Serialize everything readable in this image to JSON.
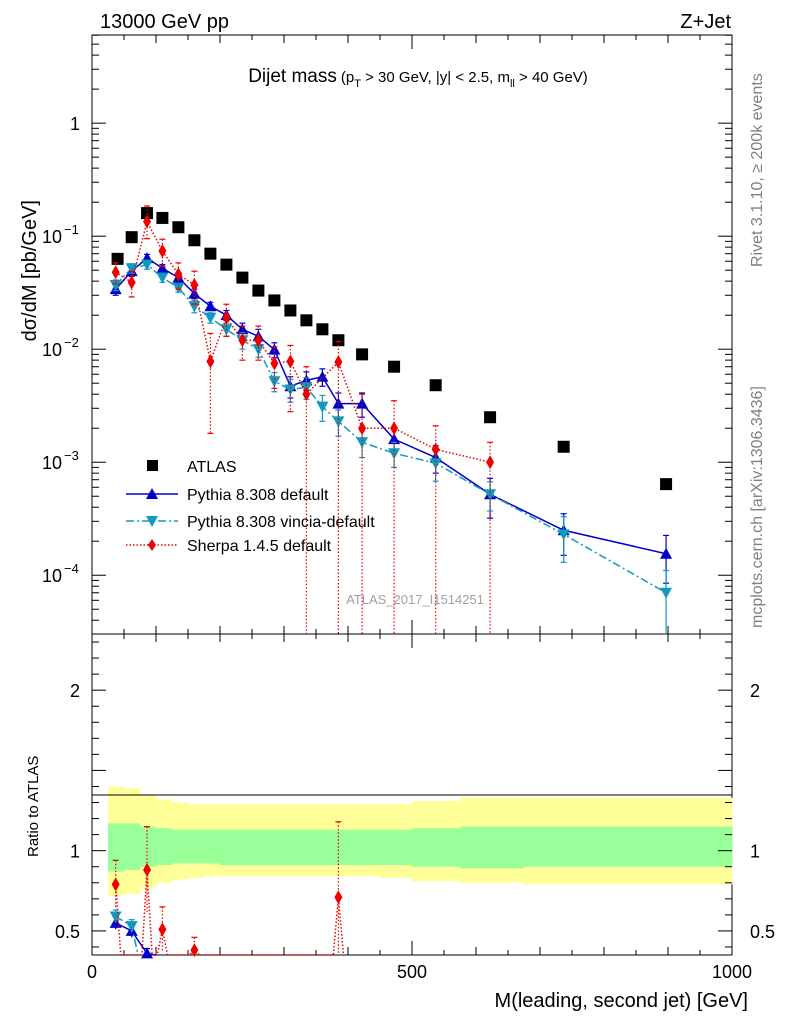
{
  "header": {
    "energy_label": "13000 GeV pp",
    "process_label": "Z+Jet"
  },
  "side_labels": {
    "rivet": "Rivet 3.1.10, ≥ 200k events",
    "mcplots": "mcplots.cern.ch [arXiv:1306.3436]"
  },
  "watermark": "ATLAS_2017_I1514251",
  "title": {
    "main": "Dijet mass",
    "cuts_part1": "(p",
    "cuts_sub1": "T",
    "cuts_part2": " > 30 GeV, |y| < 2.5, m",
    "cuts_sub2": "ll",
    "cuts_part3": " > 40 GeV)"
  },
  "colors": {
    "atlas": "#000000",
    "pythia": "#0000cc",
    "vincia": "#1199bb",
    "sherpa": "#ee0000",
    "band_inner": "#99ff99",
    "band_outer": "#ffff99"
  },
  "chart_data": [
    {
      "type": "scatter",
      "panel": "main",
      "ylabel": "dσ/dM [pb/GeV]",
      "yscale": "log",
      "xlim": [
        0,
        1000
      ],
      "ylim": [
        3e-05,
        6
      ],
      "x_ticks": [
        "0",
        "500",
        "1000"
      ],
      "y_ticks": [
        {
          "value": 1,
          "label": "1"
        },
        {
          "value": 0.1,
          "base": "10",
          "exp": "−1"
        },
        {
          "value": 0.01,
          "base": "10",
          "exp": "−2"
        },
        {
          "value": 0.001,
          "base": "10",
          "exp": "−3"
        },
        {
          "value": 0.0001,
          "base": "10",
          "exp": "−4"
        }
      ],
      "legend_position": "lower-left",
      "series": [
        {
          "name": "ATLAS",
          "marker": "square",
          "x": [
            40,
            62,
            86,
            110,
            135,
            160,
            185,
            210,
            235,
            260,
            285,
            310,
            335,
            360,
            385,
            422,
            472,
            537,
            622,
            737,
            897
          ],
          "y": [
            0.063,
            0.098,
            0.16,
            0.145,
            0.12,
            0.092,
            0.07,
            0.056,
            0.043,
            0.033,
            0.027,
            0.022,
            0.018,
            0.015,
            0.012,
            0.009,
            0.007,
            0.0048,
            0.0025,
            0.00137,
            0.00064
          ]
        },
        {
          "name": "Pythia 8.308 default",
          "marker": "triangle-up",
          "line": "solid",
          "x": [
            37,
            62,
            86,
            110,
            135,
            160,
            185,
            210,
            235,
            260,
            285,
            310,
            335,
            360,
            385,
            422,
            472,
            537,
            622,
            737,
            897
          ],
          "y": [
            0.034,
            0.049,
            0.064,
            0.052,
            0.043,
            0.031,
            0.024,
            0.02,
            0.015,
            0.013,
            0.0099,
            0.0047,
            0.0053,
            0.0057,
            0.0033,
            0.0033,
            0.0016,
            0.0011,
            0.00052,
            0.00025,
            0.000155
          ],
          "y_err": [
            0.004,
            0.005,
            0.005,
            0.004,
            0.004,
            0.003,
            0.002,
            0.002,
            0.002,
            0.002,
            0.0015,
            0.001,
            0.001,
            0.001,
            0.0008,
            0.0008,
            0.0004,
            0.0003,
            0.0002,
            0.0001,
            7e-05
          ]
        },
        {
          "name": "Pythia 8.308 vincia-default",
          "marker": "triangle-down",
          "line": "dash-dot",
          "x": [
            37,
            62,
            86,
            110,
            135,
            160,
            185,
            210,
            235,
            260,
            285,
            310,
            335,
            360,
            385,
            422,
            472,
            537,
            622,
            737,
            897
          ],
          "y": [
            0.037,
            0.052,
            0.056,
            0.043,
            0.035,
            0.024,
            0.019,
            0.015,
            0.012,
            0.01,
            0.0052,
            0.0044,
            0.0046,
            0.0031,
            0.0023,
            0.0015,
            0.0012,
            0.00098,
            0.00052,
            0.00023,
            7e-05
          ],
          "y_err": [
            0.004,
            0.005,
            0.005,
            0.004,
            0.003,
            0.003,
            0.002,
            0.002,
            0.002,
            0.0015,
            0.001,
            0.001,
            0.001,
            0.0008,
            0.0006,
            0.0004,
            0.0003,
            0.0003,
            0.00015,
            0.0001,
            4e-05
          ]
        },
        {
          "name": "Sherpa 1.4.5 default",
          "marker": "diamond",
          "line": "dotted",
          "x": [
            37,
            62,
            86,
            110,
            135,
            160,
            185,
            210,
            235,
            260,
            285,
            310,
            335,
            385,
            422,
            472,
            537,
            622
          ],
          "y": [
            0.048,
            0.039,
            0.135,
            0.074,
            0.046,
            0.037,
            0.0078,
            0.019,
            0.012,
            0.012,
            0.0075,
            0.0078,
            0.004,
            0.0077,
            0.002,
            0.002,
            0.0013,
            0.001
          ],
          "y_err_low": [
            0.01,
            0.01,
            0.04,
            0.02,
            0.012,
            0.012,
            0.006,
            0.006,
            0.004,
            0.004,
            0.003,
            0.005,
            0.004,
            0.0077,
            0.002,
            0.002,
            0.0013,
            0.001
          ],
          "y_err_high": [
            0.01,
            0.01,
            0.05,
            0.02,
            0.012,
            0.012,
            0.006,
            0.006,
            0.004,
            0.004,
            0.003,
            0.003,
            0.003,
            0.004,
            0.002,
            0.0015,
            0.0008,
            0.0005
          ]
        }
      ]
    },
    {
      "type": "line",
      "panel": "ratio",
      "ylabel": "Ratio to ATLAS",
      "xlabel": "M(leading, second jet) [GeV]",
      "xlim": [
        0,
        1000
      ],
      "ylim": [
        0.35,
        2.35
      ],
      "x_ticks": [
        "0",
        "500",
        "1000"
      ],
      "y_ticks": [
        "0.5",
        "1",
        "2"
      ],
      "bands": {
        "edges": [
          25,
          50,
          75,
          100,
          125,
          150,
          175,
          200,
          225,
          250,
          275,
          300,
          325,
          350,
          375,
          400,
          450,
          500,
          575,
          675,
          800,
          1000
        ],
        "inner_low": [
          0.87,
          0.88,
          0.9,
          0.91,
          0.92,
          0.92,
          0.92,
          0.91,
          0.91,
          0.91,
          0.91,
          0.91,
          0.91,
          0.91,
          0.91,
          0.91,
          0.91,
          0.9,
          0.89,
          0.9,
          0.9
        ],
        "inner_high": [
          1.17,
          1.17,
          1.15,
          1.14,
          1.13,
          1.13,
          1.13,
          1.13,
          1.13,
          1.13,
          1.13,
          1.13,
          1.13,
          1.13,
          1.13,
          1.13,
          1.13,
          1.14,
          1.15,
          1.15,
          1.15
        ],
        "outer_low": [
          0.72,
          0.73,
          0.77,
          0.8,
          0.82,
          0.83,
          0.84,
          0.84,
          0.84,
          0.84,
          0.84,
          0.84,
          0.84,
          0.84,
          0.84,
          0.84,
          0.83,
          0.81,
          0.8,
          0.79,
          0.79
        ],
        "outer_high": [
          1.4,
          1.39,
          1.35,
          1.32,
          1.3,
          1.29,
          1.29,
          1.29,
          1.29,
          1.29,
          1.29,
          1.29,
          1.29,
          1.29,
          1.29,
          1.29,
          1.29,
          1.31,
          1.33,
          1.33,
          1.33
        ]
      },
      "series": [
        {
          "name": "Pythia 8.308 default",
          "x": [
            37,
            62,
            86
          ],
          "y": [
            0.55,
            0.5,
            0.36
          ],
          "y_err": [
            0.04,
            0.04,
            0.03
          ]
        },
        {
          "name": "Pythia 8.308 vincia-default",
          "x": [
            37,
            62
          ],
          "y": [
            0.59,
            0.53
          ],
          "y_err": [
            0.04,
            0.04
          ]
        },
        {
          "name": "Sherpa 1.4.5 default",
          "x": [
            37,
            86,
            110,
            160,
            385
          ],
          "y": [
            0.79,
            0.88,
            0.51,
            0.38,
            0.71
          ],
          "y_err": [
            0.15,
            0.27,
            0.14,
            0.08,
            0.47
          ]
        }
      ]
    }
  ]
}
